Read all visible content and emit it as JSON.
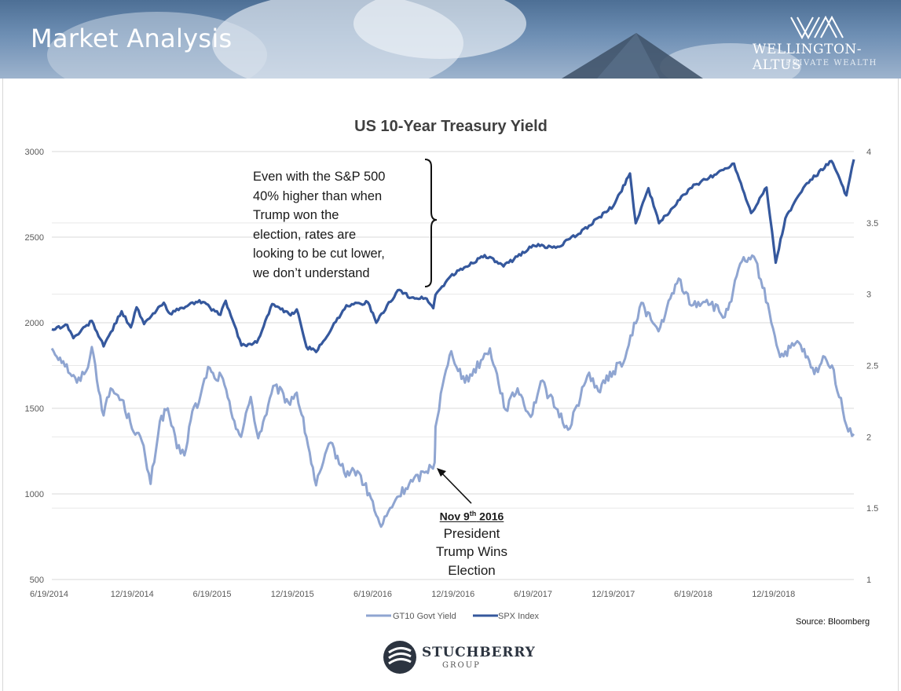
{
  "header": {
    "title": "Market Analysis",
    "brand_name": "WELLINGTON-ALTUS",
    "brand_sub": "PRIVATE WEALTH"
  },
  "annotation": {
    "text": "Even with the S&P 500 40% higher than when Trump won the election, rates are looking to be cut lower, we don’t understand",
    "lines": [
      "Even with the S&P 500",
      "40% higher than when",
      "Trump won the",
      "election, rates are",
      "looking to be cut lower,",
      "we don’t understand"
    ]
  },
  "election_note": {
    "date_prefix": "Nov 9",
    "date_sup": "th",
    "date_suffix": " 2016",
    "lines": [
      "President",
      "Trump Wins",
      "Election"
    ]
  },
  "source": "Source: Bloomberg",
  "footer": {
    "brand_name": "STUCHBERRY",
    "brand_sub": "GROUP"
  },
  "colors": {
    "spx": "#35589d",
    "gt10": "#8fa5d1",
    "grid": "#d9d9d9",
    "axis_text": "#595959",
    "title": "#404040"
  },
  "chart_data": {
    "type": "line",
    "title": "US 10-Year Treasury Yield",
    "x_tick_labels": [
      "6/19/2014",
      "12/19/2014",
      "6/19/2015",
      "12/19/2015",
      "6/19/2016",
      "12/19/2016",
      "6/19/2017",
      "12/19/2017",
      "6/19/2018",
      "12/19/2018"
    ],
    "x_range": [
      "2014-06-19",
      "2019-06-20"
    ],
    "y_left": {
      "label": "",
      "min": 500,
      "max": 3000,
      "ticks": [
        500,
        1000,
        1500,
        2000,
        2500,
        3000
      ]
    },
    "y_right": {
      "label": "",
      "min": 1,
      "max": 4,
      "ticks": [
        "1",
        "1.5",
        "2",
        "2.5",
        "3",
        "3.5",
        "4"
      ]
    },
    "grid": true,
    "legend_position": "bottom",
    "highlight_date": "2016-11-09",
    "series": [
      {
        "name": "GT10 Govt Yield",
        "axis": "right",
        "points": [
          [
            "2014-06-19",
            2.62
          ],
          [
            "2014-07-15",
            2.53
          ],
          [
            "2014-08-15",
            2.38
          ],
          [
            "2014-09-05",
            2.46
          ],
          [
            "2014-09-18",
            2.63
          ],
          [
            "2014-10-15",
            2.15
          ],
          [
            "2014-10-31",
            2.34
          ],
          [
            "2014-11-25",
            2.26
          ],
          [
            "2014-12-15",
            2.1
          ],
          [
            "2015-01-10",
            1.97
          ],
          [
            "2015-01-30",
            1.67
          ],
          [
            "2015-02-20",
            2.11
          ],
          [
            "2015-03-10",
            2.2
          ],
          [
            "2015-03-31",
            1.92
          ],
          [
            "2015-04-17",
            1.87
          ],
          [
            "2015-05-05",
            2.18
          ],
          [
            "2015-05-20",
            2.24
          ],
          [
            "2015-06-10",
            2.49
          ],
          [
            "2015-06-25",
            2.41
          ],
          [
            "2015-07-10",
            2.43
          ],
          [
            "2015-08-01",
            2.18
          ],
          [
            "2015-08-24",
            2.0
          ],
          [
            "2015-09-15",
            2.28
          ],
          [
            "2015-10-02",
            1.99
          ],
          [
            "2015-11-09",
            2.36
          ],
          [
            "2015-12-10",
            2.24
          ],
          [
            "2015-12-29",
            2.31
          ],
          [
            "2016-01-20",
            2.0
          ],
          [
            "2016-02-11",
            1.66
          ],
          [
            "2016-03-15",
            1.96
          ],
          [
            "2016-04-15",
            1.75
          ],
          [
            "2016-05-15",
            1.76
          ],
          [
            "2016-06-15",
            1.57
          ],
          [
            "2016-06-27",
            1.45
          ],
          [
            "2016-07-08",
            1.37
          ],
          [
            "2016-08-10",
            1.56
          ],
          [
            "2016-09-10",
            1.67
          ],
          [
            "2016-10-15",
            1.75
          ],
          [
            "2016-11-07",
            1.82
          ],
          [
            "2016-11-09",
            2.07
          ],
          [
            "2016-11-25",
            2.36
          ],
          [
            "2016-12-15",
            2.6
          ],
          [
            "2017-01-15",
            2.38
          ],
          [
            "2017-03-13",
            2.62
          ],
          [
            "2017-04-18",
            2.19
          ],
          [
            "2017-05-15",
            2.34
          ],
          [
            "2017-06-14",
            2.14
          ],
          [
            "2017-07-07",
            2.39
          ],
          [
            "2017-08-10",
            2.2
          ],
          [
            "2017-09-07",
            2.05
          ],
          [
            "2017-10-25",
            2.45
          ],
          [
            "2017-11-15",
            2.32
          ],
          [
            "2017-12-19",
            2.46
          ],
          [
            "2018-01-15",
            2.55
          ],
          [
            "2018-02-21",
            2.94
          ],
          [
            "2018-03-15",
            2.82
          ],
          [
            "2018-04-01",
            2.74
          ],
          [
            "2018-05-17",
            3.11
          ],
          [
            "2018-06-15",
            2.92
          ],
          [
            "2018-07-20",
            2.96
          ],
          [
            "2018-08-30",
            2.84
          ],
          [
            "2018-09-10",
            2.94
          ],
          [
            "2018-10-08",
            3.23
          ],
          [
            "2018-11-08",
            3.24
          ],
          [
            "2018-12-10",
            2.87
          ],
          [
            "2019-01-03",
            2.56
          ],
          [
            "2019-02-15",
            2.66
          ],
          [
            "2019-03-22",
            2.44
          ],
          [
            "2019-04-15",
            2.56
          ],
          [
            "2019-05-01",
            2.5
          ],
          [
            "2019-06-03",
            2.08
          ],
          [
            "2019-06-20",
            2.02
          ]
        ]
      },
      {
        "name": "SPX Index",
        "axis": "left",
        "points": [
          [
            "2014-06-19",
            1962
          ],
          [
            "2014-07-24",
            1987
          ],
          [
            "2014-08-07",
            1910
          ],
          [
            "2014-09-18",
            2011
          ],
          [
            "2014-10-15",
            1862
          ],
          [
            "2014-11-25",
            2067
          ],
          [
            "2014-12-16",
            1973
          ],
          [
            "2014-12-29",
            2090
          ],
          [
            "2015-01-15",
            1992
          ],
          [
            "2015-03-01",
            2117
          ],
          [
            "2015-03-15",
            2053
          ],
          [
            "2015-05-21",
            2131
          ],
          [
            "2015-07-08",
            2046
          ],
          [
            "2015-07-20",
            2128
          ],
          [
            "2015-08-25",
            1867
          ],
          [
            "2015-09-29",
            1884
          ],
          [
            "2015-11-03",
            2109
          ],
          [
            "2015-12-15",
            2043
          ],
          [
            "2015-12-29",
            2078
          ],
          [
            "2016-01-20",
            1859
          ],
          [
            "2016-02-11",
            1829
          ],
          [
            "2016-04-20",
            2102
          ],
          [
            "2016-06-08",
            2119
          ],
          [
            "2016-06-27",
            2000
          ],
          [
            "2016-08-15",
            2190
          ],
          [
            "2016-09-15",
            2147
          ],
          [
            "2016-10-20",
            2141
          ],
          [
            "2016-11-04",
            2085
          ],
          [
            "2016-11-09",
            2163
          ],
          [
            "2016-12-13",
            2271
          ],
          [
            "2017-03-01",
            2395
          ],
          [
            "2017-04-13",
            2329
          ],
          [
            "2017-06-19",
            2453
          ],
          [
            "2017-08-10",
            2438
          ],
          [
            "2017-10-01",
            2519
          ],
          [
            "2017-12-19",
            2681
          ],
          [
            "2018-01-26",
            2872
          ],
          [
            "2018-02-08",
            2581
          ],
          [
            "2018-03-09",
            2786
          ],
          [
            "2018-04-02",
            2581
          ],
          [
            "2018-06-12",
            2786
          ],
          [
            "2018-07-25",
            2846
          ],
          [
            "2018-09-20",
            2930
          ],
          [
            "2018-10-29",
            2641
          ],
          [
            "2018-12-03",
            2790
          ],
          [
            "2018-12-24",
            2351
          ],
          [
            "2019-01-15",
            2610
          ],
          [
            "2019-03-01",
            2803
          ],
          [
            "2019-04-30",
            2945
          ],
          [
            "2019-06-03",
            2744
          ],
          [
            "2019-06-20",
            2954
          ]
        ]
      }
    ]
  }
}
